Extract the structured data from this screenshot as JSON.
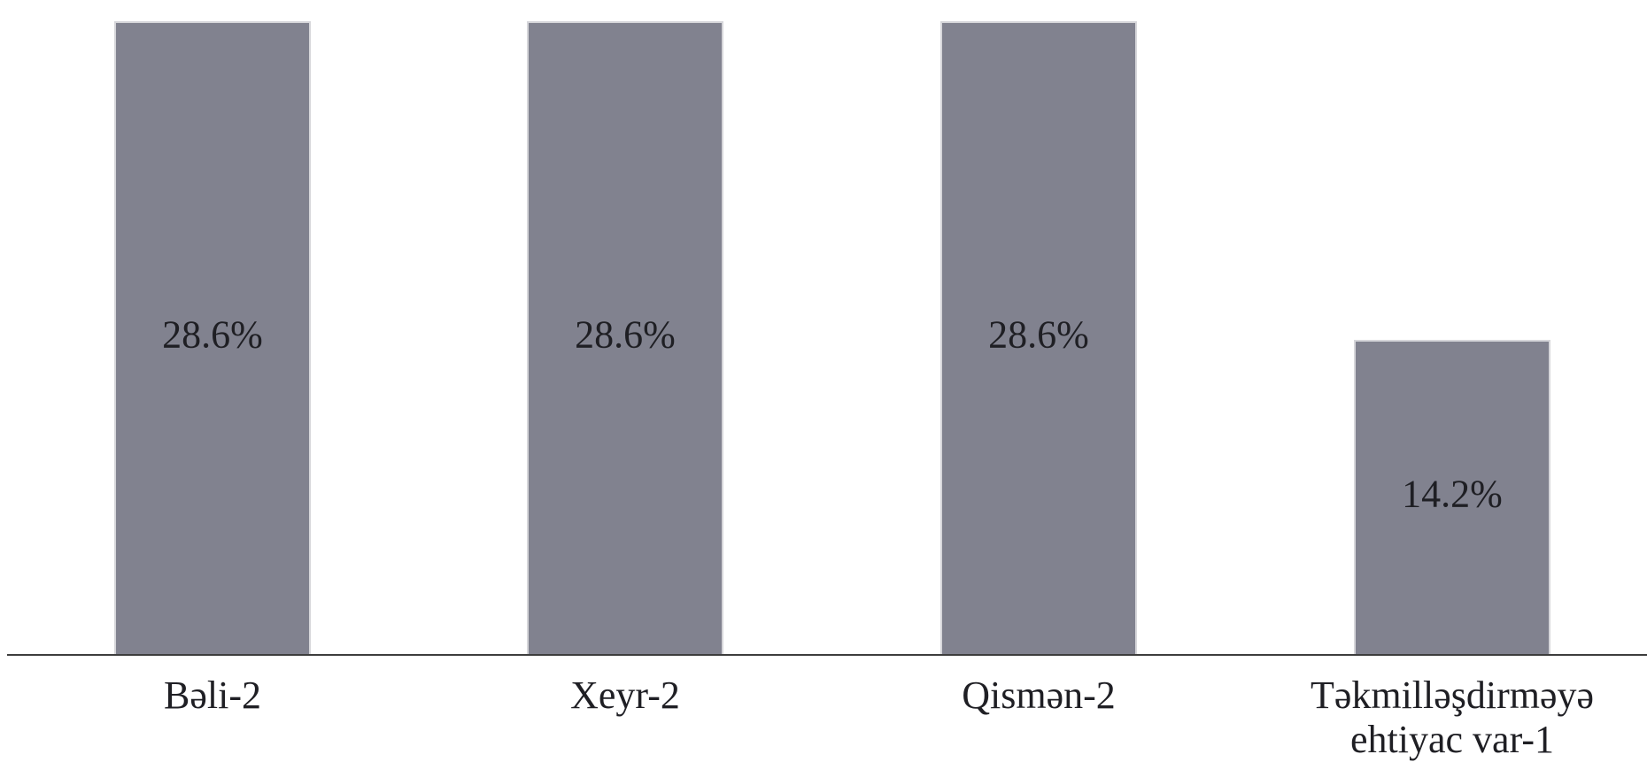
{
  "colors": {
    "bar": "#81828f",
    "axis": "#3d3d3d",
    "text": "#1f1f24",
    "background": "#ffffff"
  },
  "chart_data": {
    "type": "bar",
    "categories": [
      [
        "Bəli-2"
      ],
      [
        "Xeyr-2"
      ],
      [
        "Qismən-2"
      ],
      [
        "Təkmilləşdirməyə",
        "ehtiyac var-1"
      ]
    ],
    "values": [
      28.6,
      28.6,
      28.6,
      14.2
    ],
    "data_labels": [
      "28.6%",
      "28.6%",
      "28.6%",
      "14.2%"
    ],
    "title": "",
    "xlabel": "",
    "ylabel": "",
    "ylim": [
      0,
      29.2
    ],
    "grid": false,
    "legend": "none"
  }
}
